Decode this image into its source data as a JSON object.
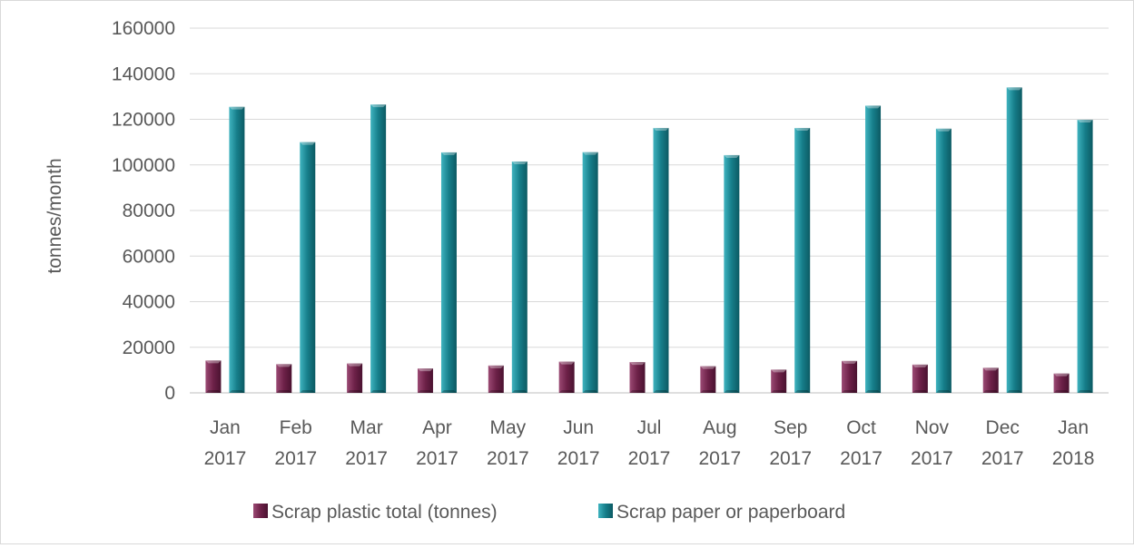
{
  "chart_data": {
    "type": "bar",
    "title": "",
    "ylabel": "tonnes/month",
    "xlabel": "",
    "ylim": [
      0,
      160000
    ],
    "yticks": [
      0,
      20000,
      40000,
      60000,
      80000,
      100000,
      120000,
      140000,
      160000
    ],
    "grid": true,
    "legend_position": "bottom",
    "categories": [
      [
        "Jan",
        "2017"
      ],
      [
        "Feb",
        "2017"
      ],
      [
        "Mar",
        "2017"
      ],
      [
        "Apr",
        "2017"
      ],
      [
        "May",
        "2017"
      ],
      [
        "Jun",
        "2017"
      ],
      [
        "Jul",
        "2017"
      ],
      [
        "Aug",
        "2017"
      ],
      [
        "Sep",
        "2017"
      ],
      [
        "Oct",
        "2017"
      ],
      [
        "Nov",
        "2017"
      ],
      [
        "Dec",
        "2017"
      ],
      [
        "Jan",
        "2018"
      ]
    ],
    "series": [
      {
        "name": "Scrap plastic total (tonnes)",
        "color": "#7a2a55",
        "values": [
          14200,
          12600,
          12900,
          10700,
          12000,
          13700,
          13500,
          11700,
          10200,
          14000,
          12400,
          11000,
          8500
        ]
      },
      {
        "name": "Scrap paper or paperboard",
        "color": "#1e8a96",
        "values": [
          125500,
          110000,
          126500,
          105500,
          101500,
          105600,
          116200,
          104300,
          116200,
          126000,
          115900,
          134000,
          119800
        ]
      }
    ]
  }
}
